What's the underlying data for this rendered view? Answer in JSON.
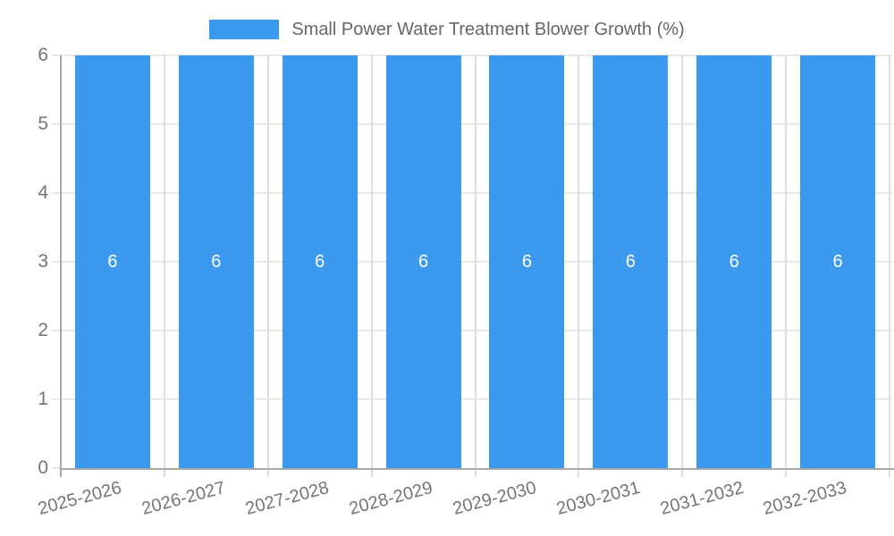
{
  "chart_data": {
    "type": "bar",
    "title": "Small Power Water Treatment Blower Growth (%)",
    "legend": {
      "position": "top",
      "label": "Small Power Water Treatment Blower Growth (%)"
    },
    "categories": [
      "2025-2026",
      "2026-2027",
      "2027-2028",
      "2028-2029",
      "2029-2030",
      "2030-2031",
      "2031-2032",
      "2032-2033"
    ],
    "series": [
      {
        "name": "Small Power Water Treatment Blower Growth (%)",
        "values": [
          6,
          6,
          6,
          6,
          6,
          6,
          6,
          6
        ]
      }
    ],
    "bar_value_labels": [
      "6",
      "6",
      "6",
      "6",
      "6",
      "6",
      "6",
      "6"
    ],
    "xlabel": "",
    "ylabel": "",
    "ylim": [
      0,
      6
    ],
    "yticks": [
      0,
      1,
      2,
      3,
      4,
      5,
      6
    ],
    "grid": true,
    "x_tick_rotation_deg": -15
  },
  "colors": {
    "bar": "#3b99ee",
    "grid_horizontal": "#e8e8e8",
    "grid_vertical": "#dedede",
    "axis": "#a8a8a8",
    "tick_label": "#757575",
    "bar_value_label": "#ffffff",
    "legend_text": "#666666",
    "background": "#ffffff"
  }
}
